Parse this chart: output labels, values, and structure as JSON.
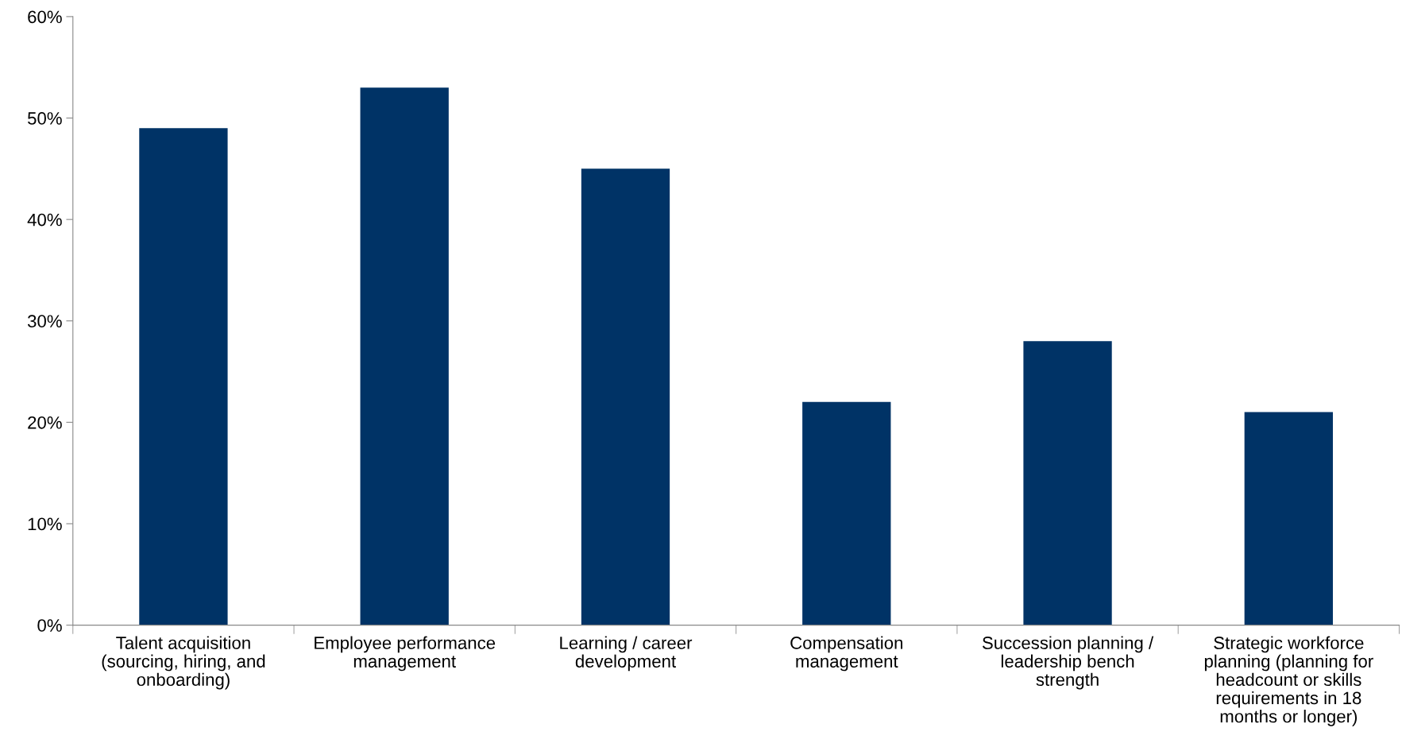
{
  "chart_data": {
    "type": "bar",
    "categories": [
      "Talent acquisition\n(sourcing, hiring, and\nonboarding)",
      "Employee performance\nmanagement",
      "Learning / career\ndevelopment",
      "Compensation\nmanagement",
      "Succession planning /\nleadership bench\nstrength",
      "Strategic workforce\nplanning (planning for\nheadcount or skills\nrequirements in 18\nmonths or longer)"
    ],
    "values": [
      49,
      53,
      45,
      22,
      28,
      21
    ],
    "color": "#003366",
    "ylim": [
      0,
      60
    ],
    "yticks": [
      {
        "value": 0,
        "label": "0%"
      },
      {
        "value": 10,
        "label": "10%"
      },
      {
        "value": 20,
        "label": "20%"
      },
      {
        "value": 30,
        "label": "30%"
      },
      {
        "value": 40,
        "label": "40%"
      },
      {
        "value": 50,
        "label": "50%"
      },
      {
        "value": 60,
        "label": "60%"
      }
    ],
    "grid": false,
    "legend": false
  }
}
